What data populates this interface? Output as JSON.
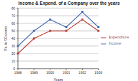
{
  "chart_data": {
    "type": "line",
    "title": "Income & Expend. of a Company over the years",
    "x_label": "Years",
    "y_label": "Rs. in '00 crores",
    "categories": [
      "1988",
      "1989",
      "1990",
      "1991",
      "1992",
      "1993"
    ],
    "series": [
      {
        "name": "Income",
        "color": "#4a6fb5",
        "marker": "square",
        "values": [
          30,
          50,
          65,
          55,
          75,
          55
        ]
      },
      {
        "name": "Expenditure",
        "color": "#b8413c",
        "marker": "square",
        "values": [
          20,
          40,
          50,
          50,
          65,
          50
        ]
      }
    ],
    "ylim": [
      0,
      80
    ],
    "yticks": [
      0,
      10,
      20,
      30,
      40,
      50,
      60,
      70,
      80
    ],
    "grid": true,
    "legend": "right"
  }
}
